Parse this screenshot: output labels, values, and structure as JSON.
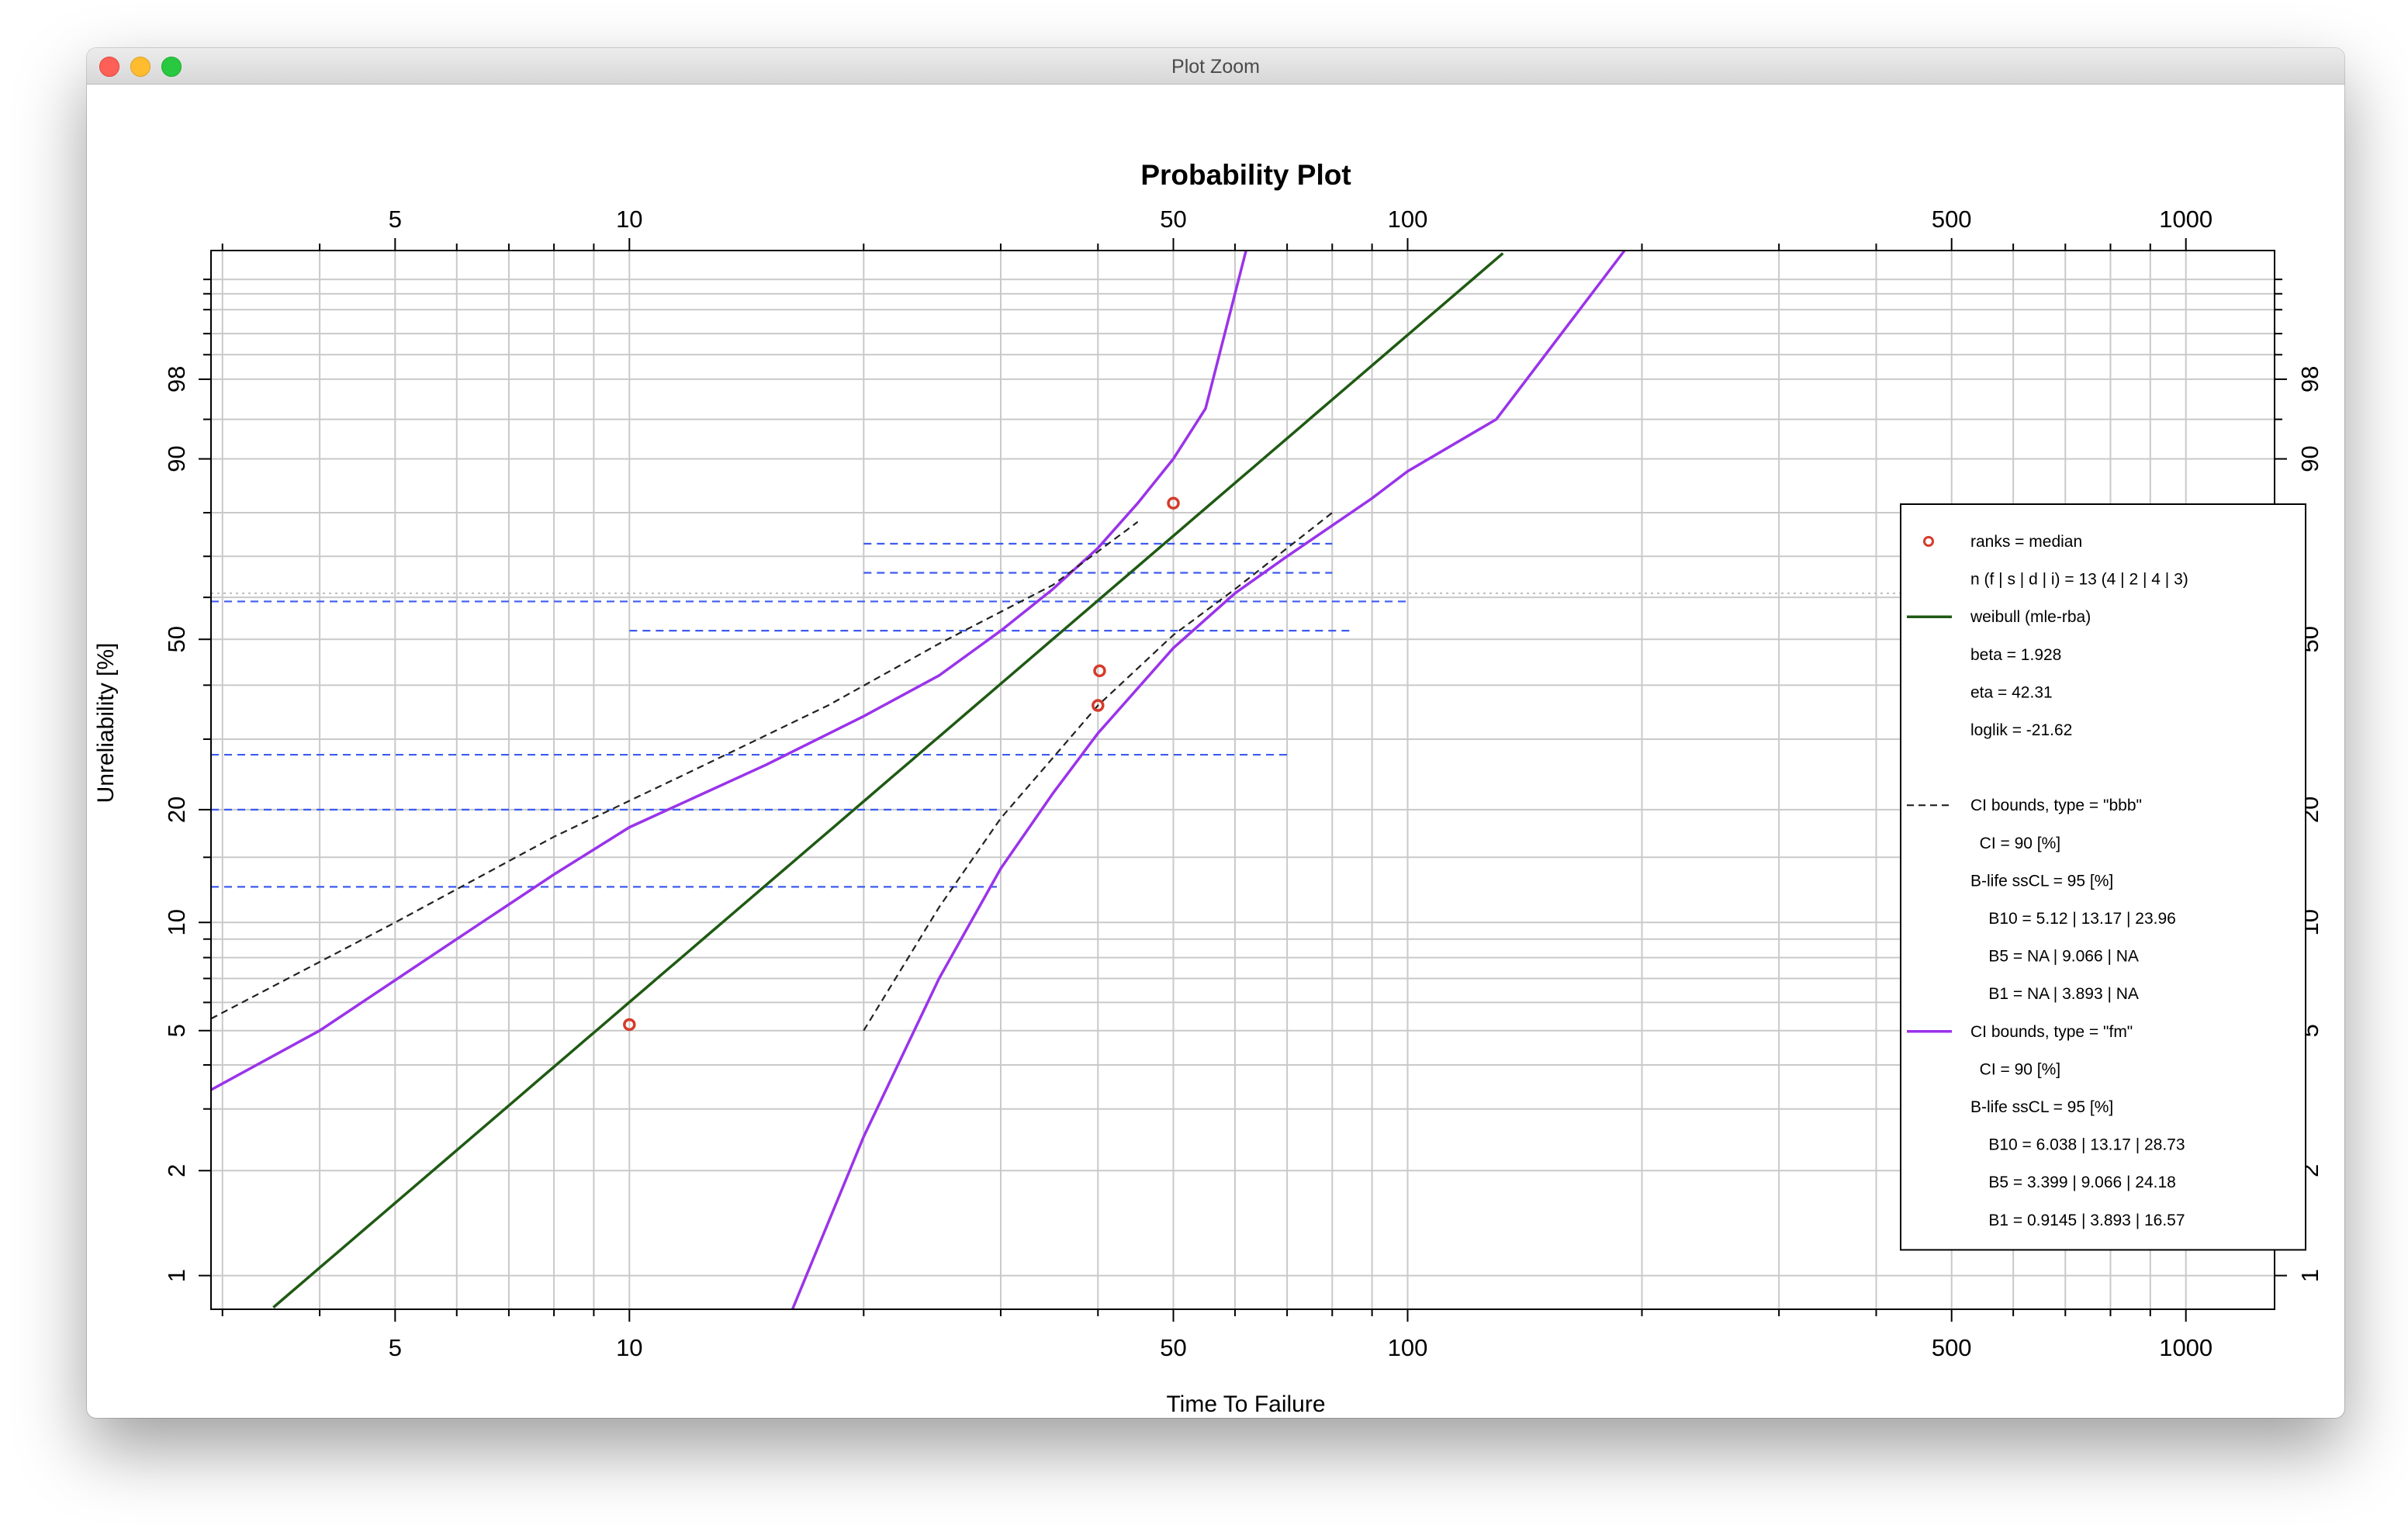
{
  "window": {
    "title": "Plot Zoom"
  },
  "chart_data": {
    "type": "scatter",
    "title": "Probability Plot",
    "xlabel": "Time To Failure",
    "ylabel": "Unreliability [%]",
    "x_scale": "log",
    "y_scale": "weibull",
    "xlim": [
      2.9,
      1300
    ],
    "ylim": [
      0.8,
      99.99
    ],
    "x_ticks": [
      5,
      10,
      50,
      100,
      500,
      1000
    ],
    "y_ticks": [
      1,
      2,
      5,
      10,
      20,
      50,
      90,
      98
    ],
    "grid": true,
    "legend_position": "right",
    "points": [
      {
        "x": 10,
        "y": 5.2
      },
      {
        "x": 40,
        "y": 36
      },
      {
        "x": 40.2,
        "y": 43
      },
      {
        "x": 50,
        "y": 82
      }
    ],
    "fit_line": {
      "name": "weibull (mle-rba)",
      "beta": 1.928,
      "eta": 42.31,
      "color": "#1f5a13"
    },
    "bbb_bounds": {
      "name": "CI bounds, type = \"bbb\"",
      "color": "#222222",
      "lower": [
        [
          20,
          5
        ],
        [
          25,
          11
        ],
        [
          30,
          19
        ],
        [
          35,
          27
        ],
        [
          40,
          36
        ],
        [
          50,
          51
        ],
        [
          60,
          62
        ],
        [
          80,
          80
        ]
      ],
      "upper": [
        [
          2.9,
          5.4
        ],
        [
          5,
          10
        ],
        [
          8,
          17
        ],
        [
          12,
          25
        ],
        [
          18,
          36
        ],
        [
          25,
          49
        ],
        [
          35,
          63
        ],
        [
          45,
          78
        ]
      ]
    },
    "fm_bounds": {
      "name": "CI bounds, type = \"fm\"",
      "color": "#9a33ea",
      "lower": [
        [
          16.2,
          0.8
        ],
        [
          20,
          2.5
        ],
        [
          25,
          7
        ],
        [
          30,
          14
        ],
        [
          35,
          22
        ],
        [
          40,
          31
        ],
        [
          50,
          48
        ],
        [
          60,
          61
        ],
        [
          70,
          70
        ],
        [
          90,
          83
        ],
        [
          100,
          88
        ],
        [
          130,
          95
        ],
        [
          190,
          99.99
        ]
      ],
      "upper": [
        [
          2.9,
          3.4
        ],
        [
          4,
          5
        ],
        [
          6,
          9
        ],
        [
          8,
          13.5
        ],
        [
          10,
          18
        ],
        [
          15,
          26
        ],
        [
          20,
          34
        ],
        [
          25,
          42
        ],
        [
          30,
          52
        ],
        [
          35,
          62
        ],
        [
          40,
          72
        ],
        [
          45,
          82
        ],
        [
          50,
          90
        ],
        [
          55,
          96
        ],
        [
          62,
          99.99
        ]
      ]
    },
    "confidence_lines": [
      {
        "y": 12.5,
        "x1": 2.9,
        "x2": 30
      },
      {
        "y": 20,
        "x1": 2.9,
        "x2": 30
      },
      {
        "y": 27.5,
        "x1": 2.9,
        "x2": 70
      },
      {
        "y": 52,
        "x1": 10,
        "x2": 85
      },
      {
        "y": 59,
        "x1": 2.9,
        "x2": 100
      },
      {
        "y": 66,
        "x1": 20,
        "x2": 80
      },
      {
        "y": 73,
        "x1": 20,
        "x2": 80
      }
    ],
    "reference_line_y": 61,
    "legend": [
      {
        "symbol": "point",
        "color": "#d63b2a",
        "text": "ranks = median"
      },
      {
        "symbol": "none",
        "text": "n (f | s | d | i) = 13 (4 | 2 | 4 | 3)"
      },
      {
        "symbol": "line",
        "color": "#1f5a13",
        "text": "weibull (mle-rba)"
      },
      {
        "symbol": "none",
        "text": "beta = 1.928"
      },
      {
        "symbol": "none",
        "text": "eta = 42.31"
      },
      {
        "symbol": "none",
        "text": "loglik = -21.62"
      },
      {
        "symbol": "none",
        "text": ""
      },
      {
        "symbol": "dash",
        "color": "#222222",
        "text": "CI bounds, type = \"bbb\""
      },
      {
        "symbol": "none",
        "text": "  CI = 90 [%]"
      },
      {
        "symbol": "none",
        "text": "B-life ssCL = 95 [%]"
      },
      {
        "symbol": "none",
        "text": "    B10 = 5.12 | 13.17 | 23.96"
      },
      {
        "symbol": "none",
        "text": "    B5 = NA | 9.066 | NA"
      },
      {
        "symbol": "none",
        "text": "    B1 = NA | 3.893 | NA"
      },
      {
        "symbol": "line",
        "color": "#9a33ea",
        "text": "CI bounds, type = \"fm\""
      },
      {
        "symbol": "none",
        "text": "  CI = 90 [%]"
      },
      {
        "symbol": "none",
        "text": "B-life ssCL = 95 [%]"
      },
      {
        "symbol": "none",
        "text": "    B10 = 6.038 | 13.17 | 28.73"
      },
      {
        "symbol": "none",
        "text": "    B5 = 3.399 | 9.066 | 24.18"
      },
      {
        "symbol": "none",
        "text": "    B1 = 0.9145 | 3.893 | 16.57"
      }
    ]
  }
}
